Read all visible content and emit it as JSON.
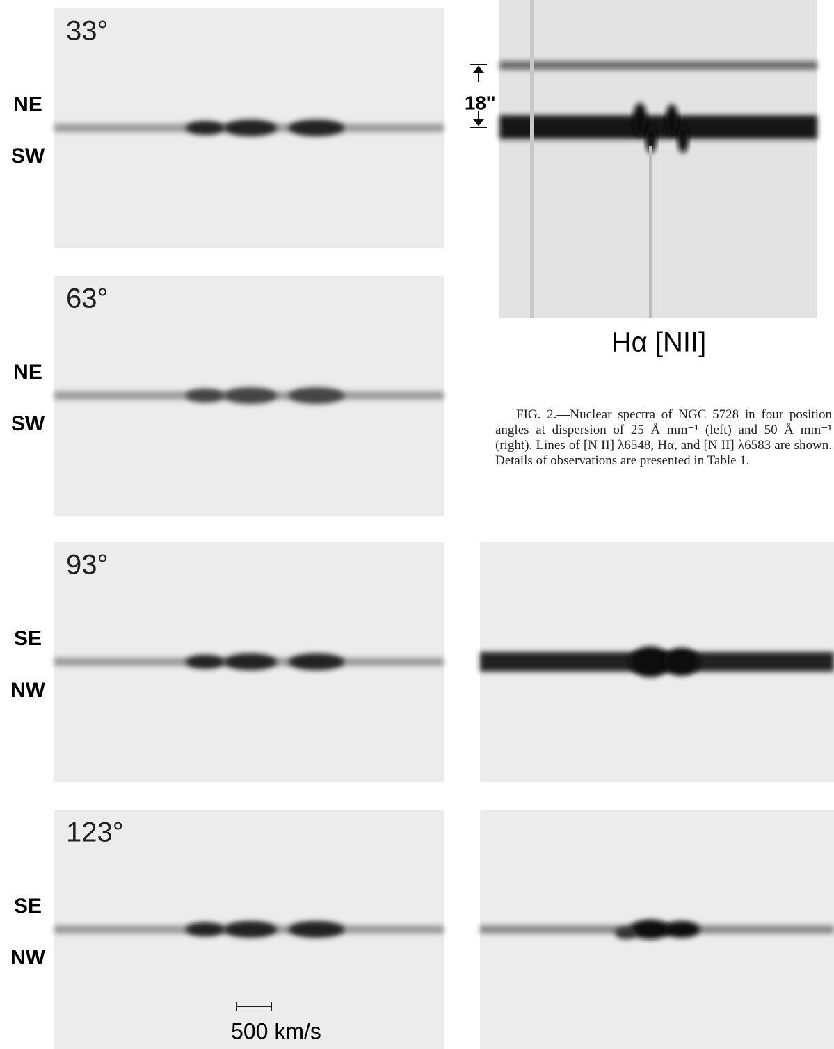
{
  "panels": [
    {
      "angle": "33°",
      "top": "NE",
      "bottom": "SW"
    },
    {
      "angle": "63°",
      "top": "NE",
      "bottom": "SW"
    },
    {
      "angle": "93°",
      "top": "SE",
      "bottom": "NW"
    },
    {
      "angle": "123°",
      "top": "SE",
      "bottom": "NW"
    }
  ],
  "slit_label": "18''",
  "lines_label": "Hα [NII]",
  "scale_label": "500 km/s",
  "caption": "FIG. 2.—Nuclear spectra of NGC 5728 in four position angles at dispersion of 25 Å mm⁻¹ (left) and 50 Å mm⁻¹ (right). Lines of [N II] λ6548, Hα, and [N II] λ6583 are shown. Details of observations are presented in Table 1."
}
